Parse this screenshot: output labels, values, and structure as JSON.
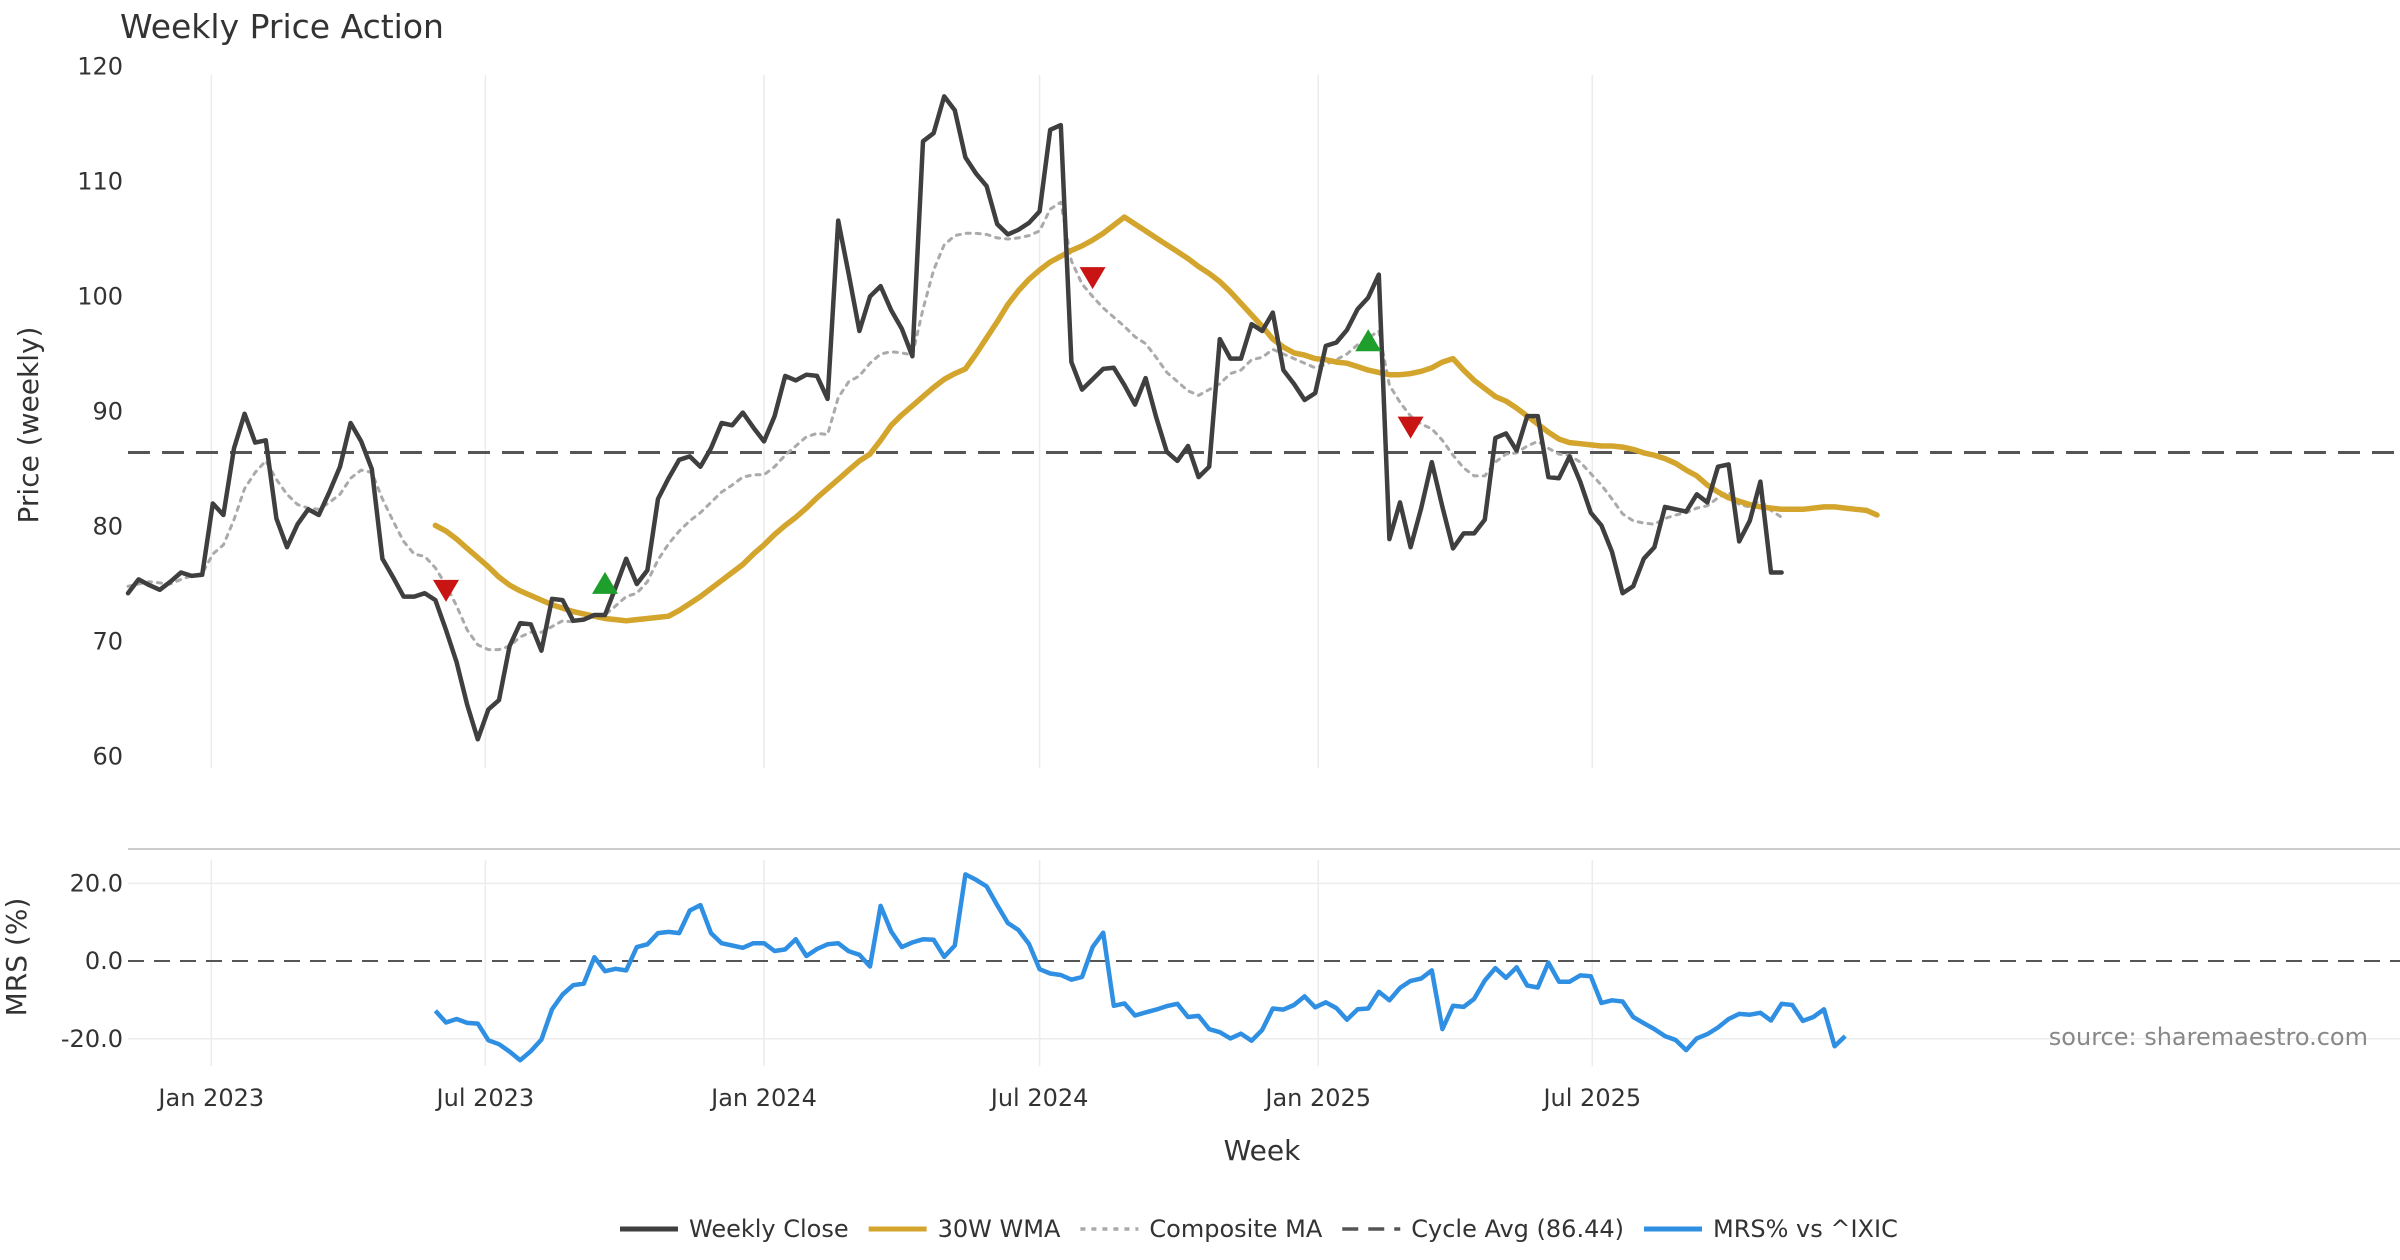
{
  "chart_data": {
    "type": "line",
    "title": "Weekly Price Action",
    "xlabel": "Week",
    "source": "source: sharemaestro.com",
    "x_start": "2022-11-07",
    "x_tick_labels": [
      {
        "date": "2023-01-01",
        "label": "Jan 2023"
      },
      {
        "date": "2023-07-01",
        "label": "Jul 2023"
      },
      {
        "date": "2024-01-01",
        "label": "Jan 2024"
      },
      {
        "date": "2024-07-01",
        "label": "Jul 2024"
      },
      {
        "date": "2025-01-01",
        "label": "Jan 2025"
      },
      {
        "date": "2025-07-01",
        "label": "Jul 2025"
      }
    ],
    "price_panel": {
      "ylabel": "Price (weekly)",
      "ylim": [
        59,
        121
      ],
      "yticks": [
        60,
        70,
        80,
        90,
        100,
        110,
        120
      ],
      "cycle_avg": 86.44,
      "series": [
        {
          "name": "Weekly Close",
          "color": "#3f3f3f",
          "start_week": 0,
          "values": [
            74.2,
            75.4,
            74.9,
            74.5,
            75.2,
            76.0,
            75.7,
            75.8,
            82.0,
            81.0,
            86.8,
            89.8,
            87.3,
            87.5,
            80.7,
            78.2,
            80.2,
            81.5,
            81.0,
            83.0,
            85.2,
            89.0,
            87.4,
            85.0,
            77.2,
            75.6,
            73.9,
            73.9,
            74.2,
            73.6,
            71.0,
            68.2,
            64.5,
            61.5,
            64.1,
            64.9,
            69.6,
            71.6,
            71.5,
            69.2,
            73.7,
            73.6,
            71.8,
            71.9,
            72.3,
            72.3,
            74.7,
            77.2,
            75.0,
            76.2,
            82.4,
            84.2,
            85.8,
            86.1,
            85.2,
            86.8,
            89.0,
            88.8,
            89.9,
            88.6,
            87.4,
            89.6,
            93.1,
            92.7,
            93.2,
            93.1,
            91.1,
            106.6,
            101.9,
            97.0,
            100.0,
            100.9,
            98.8,
            97.2,
            94.8,
            113.5,
            114.2,
            117.4,
            116.2,
            112.1,
            110.7,
            109.6,
            106.3,
            105.4,
            105.8,
            106.4,
            107.4,
            114.5,
            114.9,
            94.3,
            91.9,
            92.8,
            93.7,
            93.8,
            92.3,
            90.6,
            92.9,
            89.5,
            86.5,
            85.7,
            87.0,
            84.3,
            85.2,
            96.3,
            94.6,
            94.6,
            97.6,
            97.0,
            98.6,
            93.6,
            92.4,
            91.0,
            91.6,
            95.7,
            96.0,
            97.1,
            98.9,
            99.9,
            101.9,
            78.9,
            82.1,
            78.2,
            81.6,
            85.6,
            81.7,
            78.1,
            79.4,
            79.4,
            80.6,
            87.7,
            88.1,
            86.6,
            89.6,
            89.6,
            84.3,
            84.2,
            86.1,
            83.9,
            81.2,
            80.1,
            77.8,
            74.2,
            74.8,
            77.2,
            78.2,
            81.7,
            81.5,
            81.3,
            82.8,
            82.1,
            85.2,
            85.4,
            78.7,
            80.5,
            83.9,
            76.0,
            76.0
          ]
        },
        {
          "name": "30W WMA",
          "color": "#d4a52c",
          "start_week": 29,
          "values": [
            80.1,
            79.6,
            78.9,
            78.1,
            77.3,
            76.5,
            75.6,
            74.9,
            74.4,
            74.0,
            73.6,
            73.2,
            72.9,
            72.6,
            72.4,
            72.2,
            72.0,
            71.9,
            71.8,
            71.9,
            72.0,
            72.1,
            72.2,
            72.7,
            73.3,
            73.9,
            74.6,
            75.3,
            76.0,
            76.7,
            77.6,
            78.4,
            79.3,
            80.1,
            80.8,
            81.6,
            82.5,
            83.3,
            84.1,
            84.9,
            85.7,
            86.3,
            87.5,
            88.8,
            89.7,
            90.5,
            91.3,
            92.1,
            92.8,
            93.3,
            93.7,
            95.0,
            96.4,
            97.8,
            99.3,
            100.5,
            101.5,
            102.3,
            103.0,
            103.5,
            104.0,
            104.4,
            104.9,
            105.5,
            106.2,
            106.9,
            106.3,
            105.7,
            105.1,
            104.5,
            103.9,
            103.3,
            102.6,
            102.0,
            101.3,
            100.4,
            99.4,
            98.4,
            97.4,
            96.3,
            95.6,
            95.1,
            94.9,
            94.6,
            94.5,
            94.3,
            94.2,
            93.9,
            93.6,
            93.4,
            93.2,
            93.2,
            93.3,
            93.5,
            93.8,
            94.3,
            94.6,
            93.6,
            92.7,
            92.0,
            91.3,
            90.9,
            90.3,
            89.6,
            88.9,
            88.2,
            87.6,
            87.3,
            87.2,
            87.1,
            87.0,
            87.0,
            86.9,
            86.7,
            86.4,
            86.2,
            85.9,
            85.5,
            84.9,
            84.4,
            83.6,
            83.0,
            82.5,
            82.2,
            81.9,
            81.7,
            81.6,
            81.5,
            81.5,
            81.5,
            81.6,
            81.7,
            81.7,
            81.6,
            81.5,
            81.4,
            81.0
          ]
        },
        {
          "name": "Composite MA",
          "color": "#aaaaaa",
          "start_week": 0,
          "values": [
            74.8,
            75.0,
            75.2,
            75.1,
            75.0,
            75.4,
            75.7,
            75.9,
            77.6,
            78.4,
            80.6,
            83.3,
            84.7,
            85.7,
            84.1,
            82.8,
            81.9,
            81.6,
            81.5,
            82.1,
            82.8,
            84.2,
            84.9,
            84.7,
            82.4,
            80.5,
            78.7,
            77.6,
            77.4,
            76.4,
            74.9,
            73.1,
            71.0,
            69.7,
            69.3,
            69.3,
            69.6,
            70.4,
            70.8,
            70.8,
            71.3,
            71.8,
            71.7,
            71.9,
            72.2,
            72.3,
            73.1,
            73.9,
            74.2,
            75.2,
            77.1,
            78.5,
            79.6,
            80.5,
            81.2,
            82.1,
            83.0,
            83.6,
            84.3,
            84.5,
            84.5,
            85.2,
            86.2,
            87.0,
            87.8,
            88.1,
            88.0,
            91.2,
            92.6,
            93.1,
            94.2,
            95.0,
            95.2,
            95.1,
            94.9,
            98.9,
            102.3,
            104.5,
            105.3,
            105.5,
            105.5,
            105.4,
            105.1,
            105.0,
            105.1,
            105.3,
            105.7,
            107.6,
            108.2,
            103.1,
            101.1,
            100.0,
            99.0,
            98.2,
            97.4,
            96.5,
            95.9,
            94.7,
            93.4,
            92.6,
            91.8,
            91.4,
            91.9,
            92.4,
            93.3,
            93.6,
            94.5,
            94.7,
            95.4,
            95.0,
            94.6,
            94.2,
            93.8,
            94.1,
            94.5,
            95.0,
            95.8,
            96.4,
            97.0,
            92.3,
            90.8,
            89.6,
            88.9,
            88.5,
            87.5,
            86.2,
            85.1,
            84.4,
            84.4,
            85.6,
            86.3,
            86.4,
            87.0,
            87.4,
            86.8,
            86.3,
            86.2,
            85.6,
            84.6,
            83.6,
            82.4,
            81.1,
            80.5,
            80.3,
            80.2,
            80.7,
            81.0,
            81.2,
            81.6,
            81.8,
            82.5,
            83.0,
            81.9,
            81.7,
            82.3,
            81.4,
            80.8
          ]
        }
      ],
      "signals": [
        {
          "type": "sell",
          "week": 30,
          "price": 74.4,
          "color": "#c91414"
        },
        {
          "type": "buy",
          "week": 45,
          "price": 75.1,
          "color": "#1e9e2a"
        },
        {
          "type": "sell",
          "week": 91,
          "price": 101.6,
          "color": "#c91414"
        },
        {
          "type": "buy",
          "week": 117,
          "price": 96.2,
          "color": "#1e9e2a"
        },
        {
          "type": "sell",
          "week": 121,
          "price": 88.6,
          "color": "#c91414"
        }
      ]
    },
    "mrs_panel": {
      "ylabel": "MRS (%)",
      "ylim": [
        -27,
        26
      ],
      "yticks": [
        20.0,
        0.0,
        -20.0
      ],
      "series": [
        {
          "name": "MRS% vs ^IXIC",
          "color": "#2f8fe3",
          "start_week": 29,
          "values": [
            -12.8,
            -15.8,
            -14.9,
            -15.9,
            -16.1,
            -20.4,
            -21.4,
            -23.3,
            -25.5,
            -23.2,
            -20.2,
            -12.4,
            -8.6,
            -6.2,
            -5.8,
            1.0,
            -2.6,
            -2.0,
            -2.4,
            3.6,
            4.3,
            7.2,
            7.5,
            7.2,
            13.0,
            14.4,
            7.2,
            4.6,
            4.0,
            3.4,
            4.6,
            4.6,
            2.6,
            3.0,
            5.6,
            1.3,
            3.1,
            4.3,
            4.6,
            2.5,
            1.6,
            -1.4,
            14.2,
            7.6,
            3.6,
            4.8,
            5.6,
            5.5,
            1.1,
            4.0,
            22.3,
            20.9,
            19.2,
            14.4,
            9.8,
            8.0,
            4.4,
            -2.1,
            -3.2,
            -3.6,
            -4.8,
            -4.1,
            3.6,
            7.3,
            -11.5,
            -10.9,
            -14.0,
            -13.2,
            -12.5,
            -11.6,
            -11.0,
            -14.4,
            -14.1,
            -17.5,
            -18.3,
            -19.9,
            -18.7,
            -20.5,
            -17.7,
            -12.2,
            -12.5,
            -11.3,
            -9.1,
            -11.9,
            -10.6,
            -12.1,
            -15.1,
            -12.4,
            -12.2,
            -7.9,
            -10.1,
            -6.9,
            -5.1,
            -4.5,
            -2.4,
            -17.5,
            -11.5,
            -11.8,
            -9.7,
            -5.0,
            -1.8,
            -4.3,
            -1.6,
            -6.3,
            -6.8,
            -0.4,
            -5.3,
            -5.3,
            -3.7,
            -3.9,
            -10.8,
            -10.1,
            -10.4,
            -14.4,
            -16.0,
            -17.5,
            -19.3,
            -20.3,
            -22.9,
            -19.9,
            -18.8,
            -17.1,
            -14.9,
            -13.6,
            -13.8,
            -13.3,
            -15.3,
            -11.0,
            -11.3,
            -15.4,
            -14.4,
            -12.4,
            -21.9,
            -19.3
          ]
        }
      ]
    },
    "legend": {
      "position": "bottom-center",
      "items": [
        {
          "label": "Weekly Close",
          "color": "#3f3f3f",
          "style": "solid"
        },
        {
          "label": "30W WMA",
          "color": "#d4a52c",
          "style": "solid"
        },
        {
          "label": "Composite MA",
          "color": "#aaaaaa",
          "style": "dotted"
        },
        {
          "label": "Cycle Avg (86.44)",
          "color": "#555555",
          "style": "dashed"
        },
        {
          "label": "MRS% vs ^IXIC",
          "color": "#2f8fe3",
          "style": "solid"
        }
      ]
    }
  }
}
